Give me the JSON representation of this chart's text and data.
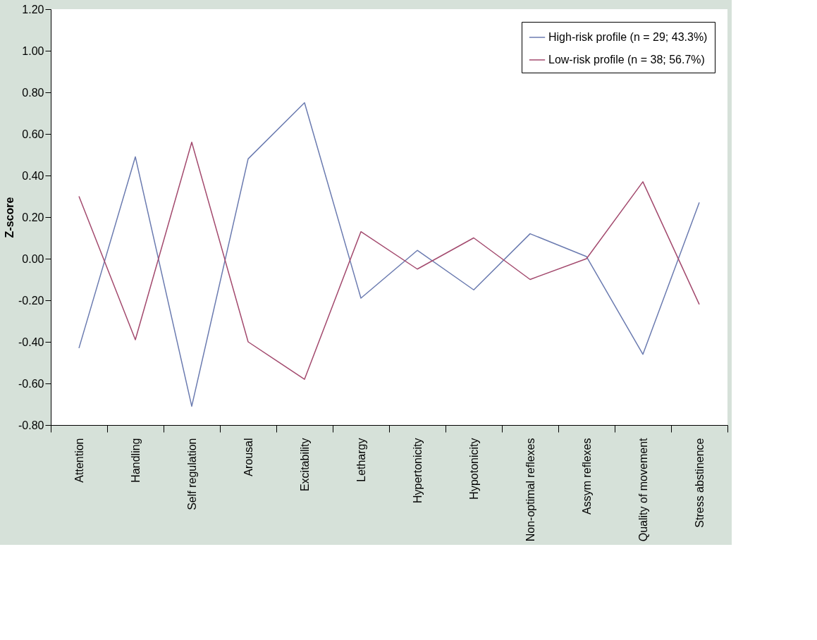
{
  "chart_data": {
    "type": "line",
    "ylabel": "Z-score",
    "categories": [
      "Attention",
      "Handling",
      "Self regulation",
      "Arousal",
      "Excitability",
      "Lethargy",
      "Hypertonicity",
      "Hypotonicity",
      "Non-optimal reflexes",
      "Assym reflexes",
      "Quality of movement",
      "Stress abstinence"
    ],
    "series": [
      {
        "name": "High-risk profile (n = 29; 43.3%)",
        "color": "#6b7bb0",
        "values": [
          -0.43,
          0.49,
          -0.71,
          0.48,
          0.75,
          -0.19,
          0.04,
          -0.15,
          0.12,
          0.01,
          -0.46,
          0.27
        ]
      },
      {
        "name": "Low-risk profile (n = 38; 56.7%)",
        "color": "#a34a6e",
        "values": [
          0.3,
          -0.39,
          0.56,
          -0.4,
          -0.58,
          0.13,
          -0.05,
          0.1,
          -0.1,
          0.0,
          0.37,
          -0.22
        ]
      }
    ],
    "ylim": [
      -0.8,
      1.2
    ],
    "yticks": [
      {
        "value": -0.8,
        "label": "-0.80"
      },
      {
        "value": -0.6,
        "label": "-0.60"
      },
      {
        "value": -0.4,
        "label": "-0.40"
      },
      {
        "value": -0.2,
        "label": "-0.20"
      },
      {
        "value": 0,
        "label": "0.00"
      },
      {
        "value": 0.2,
        "label": "0.20"
      },
      {
        "value": 0.4,
        "label": "0.40"
      },
      {
        "value": 0.6,
        "label": "0.60"
      },
      {
        "value": 0.8,
        "label": "0.80"
      },
      {
        "value": 1.0,
        "label": "1.00"
      },
      {
        "value": 1.2,
        "label": "1.20"
      }
    ],
    "grid": false,
    "legend": "top right",
    "marker": "none",
    "line_style": "solid"
  }
}
